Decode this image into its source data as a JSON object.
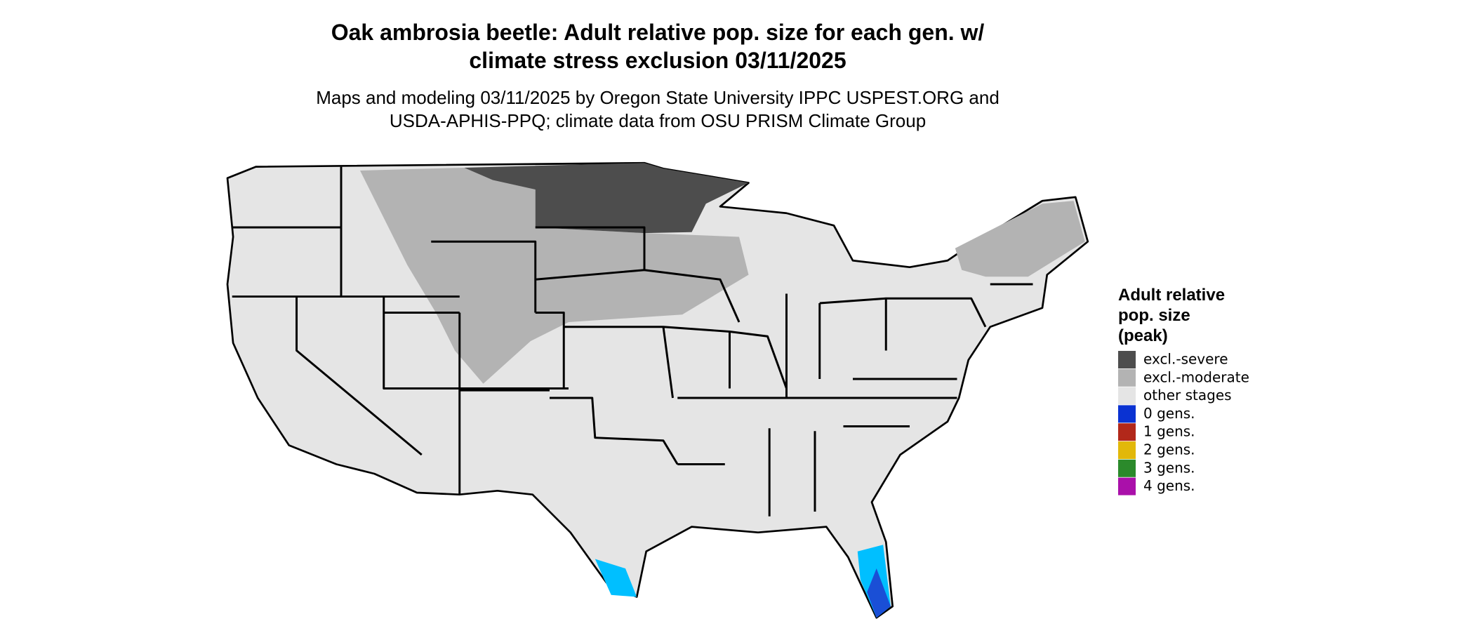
{
  "header": {
    "title": [
      "Oak ambrosia beetle: Adult relative pop. size for each gen. w/",
      "climate stress exclusion 03/11/2025"
    ],
    "subtitle": [
      "Maps and modeling 03/11/2025 by Oregon State University IPPC USPEST.ORG and",
      "USDA-APHIS-PPQ; climate data from OSU PRISM Climate Group"
    ]
  },
  "legend": {
    "title": [
      "Adult relative",
      "pop. size",
      "(peak)"
    ],
    "entries": [
      {
        "label": "excl.-severe",
        "color": "#4d4d4d"
      },
      {
        "label": "excl.-moderate",
        "color": "#b3b3b3"
      },
      {
        "label": "other stages",
        "color": "#e5e5e5"
      },
      {
        "label": "0 gens.",
        "color": "#0a32d2"
      },
      {
        "label": "1 gens.",
        "color": "#b2281a"
      },
      {
        "label": "2 gens.",
        "color": "#e2b80a"
      },
      {
        "label": "3 gens.",
        "color": "#2b8a2b"
      },
      {
        "label": "4 gens.",
        "color": "#aa10aa"
      }
    ]
  }
}
